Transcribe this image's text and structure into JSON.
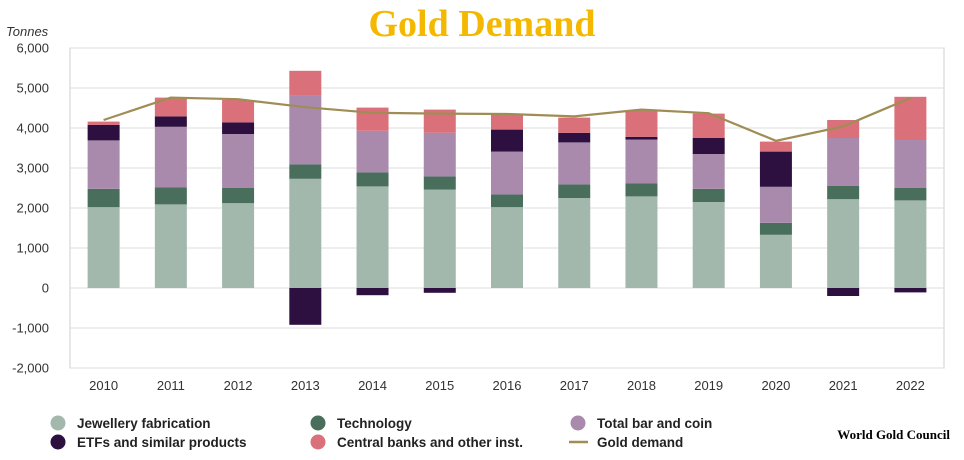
{
  "chart_data": {
    "type": "bar",
    "stacked": true,
    "title": "Gold Demand",
    "ylabel": "Tonnes",
    "xlabel": "",
    "ylim": [
      -2000,
      6000
    ],
    "ytick_values": [
      -2000,
      -1000,
      0,
      1000,
      2000,
      3000,
      4000,
      5000,
      6000
    ],
    "ytick_labels": [
      "-2,000",
      "-1,000",
      "0",
      "1,000",
      "2,000",
      "3,000",
      "4,000",
      "5,000",
      "6,000"
    ],
    "categories": [
      "2010",
      "2011",
      "2012",
      "2013",
      "2014",
      "2015",
      "2016",
      "2017",
      "2018",
      "2019",
      "2020",
      "2021",
      "2022"
    ],
    "series": [
      {
        "name": "Jewellery fabrication",
        "color": "#a3b8ad",
        "values": [
          2020,
          2090,
          2120,
          2730,
          2540,
          2460,
          2020,
          2250,
          2290,
          2150,
          1330,
          2220,
          2190
        ]
      },
      {
        "name": "Technology",
        "color": "#4a6e5c",
        "values": [
          460,
          430,
          380,
          360,
          350,
          330,
          320,
          340,
          330,
          330,
          300,
          330,
          310
        ]
      },
      {
        "name": "Total bar and coin",
        "color": "#a98aad",
        "values": [
          1210,
          1510,
          1350,
          1720,
          1040,
          1090,
          1070,
          1050,
          1090,
          870,
          900,
          1200,
          1200
        ]
      },
      {
        "name": "ETFs and similar products",
        "color": "#2e1040",
        "values": [
          390,
          260,
          290,
          -920,
          -180,
          -120,
          550,
          240,
          70,
          400,
          880,
          -200,
          -110
        ]
      },
      {
        "name": "Central banks and other inst.",
        "color": "#d9707a",
        "values": [
          80,
          470,
          560,
          620,
          580,
          580,
          390,
          380,
          660,
          610,
          250,
          450,
          1080
        ]
      }
    ],
    "line": {
      "name": "Gold demand",
      "color": "#a08d55",
      "values": [
        4200,
        4760,
        4720,
        4520,
        4380,
        4360,
        4350,
        4290,
        4460,
        4370,
        3680,
        4040,
        4750
      ]
    },
    "grid": true,
    "legend_position": "bottom"
  },
  "source": "World Gold Council"
}
